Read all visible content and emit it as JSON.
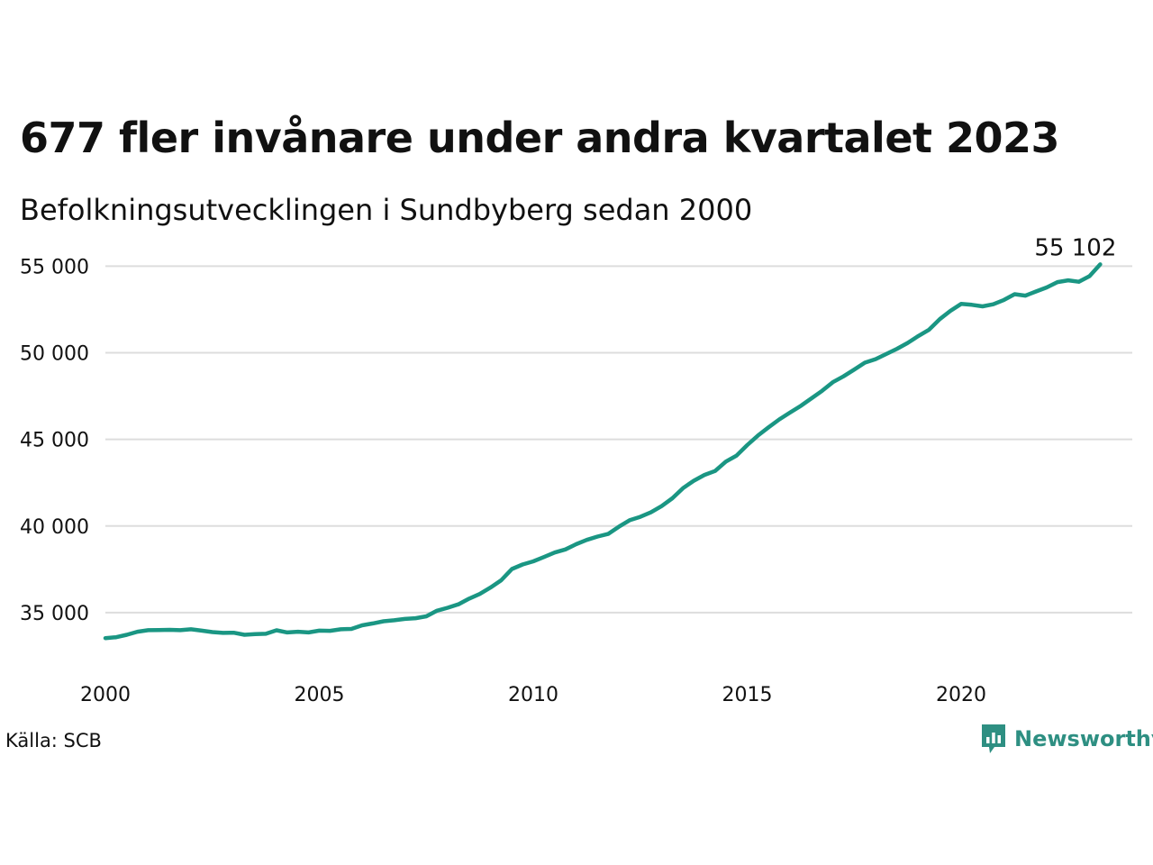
{
  "title": "677 fler invånare under andra kvartalet 2023",
  "subtitle": "Befolkningsutvecklingen i Sundbyberg sedan 2000",
  "source": "Källa: SCB",
  "brand": {
    "name": "Newsworthy",
    "icon": "newsworthy-logo-icon",
    "color": "#2e8f82"
  },
  "line_color": "#1a9683",
  "grid_color": "#dddddd",
  "chart_data": {
    "type": "line",
    "title": "677 fler invånare under andra kvartalet 2023",
    "subtitle": "Befolkningsutvecklingen i Sundbyberg sedan 2000",
    "xlabel": "",
    "ylabel": "",
    "x_ticks": [
      {
        "value": 2000,
        "label": "2000"
      },
      {
        "value": 2005,
        "label": "2005"
      },
      {
        "value": 2010,
        "label": "2010"
      },
      {
        "value": 2015,
        "label": "2015"
      },
      {
        "value": 2020,
        "label": "2020"
      }
    ],
    "y_ticks": [
      {
        "value": 35000,
        "label": "35 000"
      },
      {
        "value": 40000,
        "label": "40 000"
      },
      {
        "value": 45000,
        "label": "45 000"
      },
      {
        "value": 50000,
        "label": "50 000"
      },
      {
        "value": 55000,
        "label": "55 000"
      }
    ],
    "xlim": [
      2000,
      2024
    ],
    "ylim": [
      32500,
      55800
    ],
    "grid": "horizontal",
    "end_label": "55 102",
    "series": [
      {
        "x": [
          2000.0,
          2000.25,
          2000.5,
          2000.75,
          2001.0,
          2001.25,
          2001.5,
          2001.75,
          2002.0,
          2002.25,
          2002.5,
          2002.75,
          2003.0,
          2003.25,
          2003.5,
          2003.75,
          2004.0,
          2004.25,
          2004.5,
          2004.75,
          2005.0,
          2005.25,
          2005.5,
          2005.75,
          2006.0,
          2006.25,
          2006.5,
          2006.75,
          2007.0,
          2007.25,
          2007.5,
          2007.75,
          2008.0,
          2008.25,
          2008.5,
          2008.75,
          2009.0,
          2009.25,
          2009.5,
          2009.75,
          2010.0,
          2010.25,
          2010.5,
          2010.75,
          2011.0,
          2011.25,
          2011.5,
          2011.75,
          2012.0,
          2012.25,
          2012.5,
          2012.75,
          2013.0,
          2013.25,
          2013.5,
          2013.75,
          2014.0,
          2014.25,
          2014.5,
          2014.75,
          2015.0,
          2015.25,
          2015.5,
          2015.75,
          2016.0,
          2016.25,
          2016.5,
          2016.75,
          2017.0,
          2017.25,
          2017.5,
          2017.75,
          2018.0,
          2018.25,
          2018.5,
          2018.75,
          2019.0,
          2019.25,
          2019.5,
          2019.75,
          2020.0,
          2020.25,
          2020.5,
          2020.75,
          2021.0,
          2021.25,
          2021.5,
          2021.75,
          2022.0,
          2022.25,
          2022.5,
          2022.75,
          2023.0,
          2023.25
        ],
        "y": [
          33530,
          33580,
          33720,
          33900,
          33990,
          34000,
          34010,
          33990,
          34040,
          33960,
          33880,
          33830,
          33840,
          33720,
          33760,
          33780,
          33980,
          33860,
          33900,
          33860,
          33960,
          33950,
          34040,
          34060,
          34270,
          34380,
          34500,
          34560,
          34640,
          34680,
          34790,
          35110,
          35280,
          35480,
          35810,
          36080,
          36450,
          36870,
          37520,
          37780,
          37960,
          38210,
          38470,
          38650,
          38950,
          39200,
          39390,
          39540,
          39960,
          40330,
          40530,
          40790,
          41150,
          41600,
          42190,
          42610,
          42950,
          43180,
          43720,
          44060,
          44670,
          45220,
          45700,
          46150,
          46550,
          46930,
          47370,
          47800,
          48300,
          48640,
          49030,
          49430,
          49630,
          49930,
          50230,
          50570,
          50970,
          51330,
          51940,
          52420,
          52820,
          52770,
          52680,
          52800,
          53050,
          53380,
          53300,
          53540,
          53770,
          54080,
          54180,
          54100,
          54420,
          55102
        ]
      }
    ]
  }
}
